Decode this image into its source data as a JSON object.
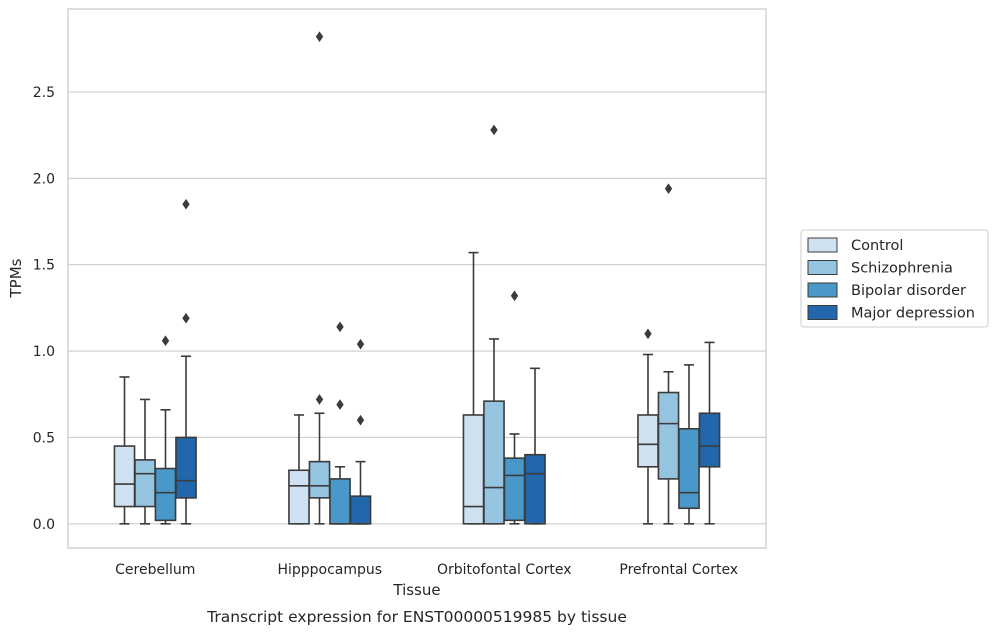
{
  "chart_data": {
    "type": "box",
    "xlabel": "Tissue",
    "ylabel": "TPMs",
    "caption": "Transcript expression for ENST00000519985 by tissue",
    "ylim": [
      -0.14,
      2.98
    ],
    "yticks": [
      0.0,
      0.5,
      1.0,
      1.5,
      2.0,
      2.5
    ],
    "ytick_labels": [
      "0.0",
      "0.5",
      "1.0",
      "1.5",
      "2.0",
      "2.5"
    ],
    "grid": "horizontal",
    "legend_position": "right",
    "categories": [
      "Cerebellum",
      "Hipppocampus",
      "Orbitofontal Cortex",
      "Prefrontal Cortex"
    ],
    "series": [
      {
        "name": "Control",
        "color": "#d0e1f2",
        "boxes": [
          {
            "whisker_low": 0.0,
            "q1": 0.1,
            "median": 0.23,
            "q3": 0.45,
            "whisker_high": 0.85,
            "outliers": []
          },
          {
            "whisker_low": 0.0,
            "q1": 0.0,
            "median": 0.22,
            "q3": 0.31,
            "whisker_high": 0.63,
            "outliers": []
          },
          {
            "whisker_low": 0.0,
            "q1": 0.0,
            "median": 0.1,
            "q3": 0.63,
            "whisker_high": 1.57,
            "outliers": []
          },
          {
            "whisker_low": 0.0,
            "q1": 0.33,
            "median": 0.46,
            "q3": 0.63,
            "whisker_high": 0.98,
            "outliers": [
              1.1
            ]
          }
        ]
      },
      {
        "name": "Schizophrenia",
        "color": "#94c4df",
        "boxes": [
          {
            "whisker_low": 0.0,
            "q1": 0.1,
            "median": 0.29,
            "q3": 0.37,
            "whisker_high": 0.72,
            "outliers": []
          },
          {
            "whisker_low": 0.0,
            "q1": 0.15,
            "median": 0.22,
            "q3": 0.36,
            "whisker_high": 0.64,
            "outliers": [
              0.72,
              2.82
            ]
          },
          {
            "whisker_low": 0.0,
            "q1": 0.0,
            "median": 0.21,
            "q3": 0.71,
            "whisker_high": 1.07,
            "outliers": [
              2.28
            ]
          },
          {
            "whisker_low": 0.0,
            "q1": 0.26,
            "median": 0.58,
            "q3": 0.76,
            "whisker_high": 0.88,
            "outliers": [
              1.94
            ]
          }
        ]
      },
      {
        "name": "Bipolar disorder",
        "color": "#4a98c9",
        "boxes": [
          {
            "whisker_low": 0.0,
            "q1": 0.02,
            "median": 0.18,
            "q3": 0.32,
            "whisker_high": 0.66,
            "outliers": [
              1.06
            ]
          },
          {
            "whisker_low": 0.0,
            "q1": 0.0,
            "median": 0.0,
            "q3": 0.26,
            "whisker_high": 0.33,
            "outliers": [
              0.69,
              1.14
            ]
          },
          {
            "whisker_low": 0.0,
            "q1": 0.02,
            "median": 0.28,
            "q3": 0.38,
            "whisker_high": 0.52,
            "outliers": [
              1.32
            ]
          },
          {
            "whisker_low": 0.0,
            "q1": 0.09,
            "median": 0.18,
            "q3": 0.55,
            "whisker_high": 0.92,
            "outliers": []
          }
        ]
      },
      {
        "name": "Major depression",
        "color": "#2266ac",
        "boxes": [
          {
            "whisker_low": 0.0,
            "q1": 0.15,
            "median": 0.25,
            "q3": 0.5,
            "whisker_high": 0.97,
            "outliers": [
              1.19,
              1.85
            ]
          },
          {
            "whisker_low": 0.0,
            "q1": 0.0,
            "median": 0.0,
            "q3": 0.16,
            "whisker_high": 0.36,
            "outliers": [
              0.6,
              1.04
            ]
          },
          {
            "whisker_low": 0.0,
            "q1": 0.0,
            "median": 0.29,
            "q3": 0.4,
            "whisker_high": 0.9,
            "outliers": []
          },
          {
            "whisker_low": 0.0,
            "q1": 0.33,
            "median": 0.45,
            "q3": 0.64,
            "whisker_high": 1.05,
            "outliers": []
          }
        ]
      }
    ]
  }
}
